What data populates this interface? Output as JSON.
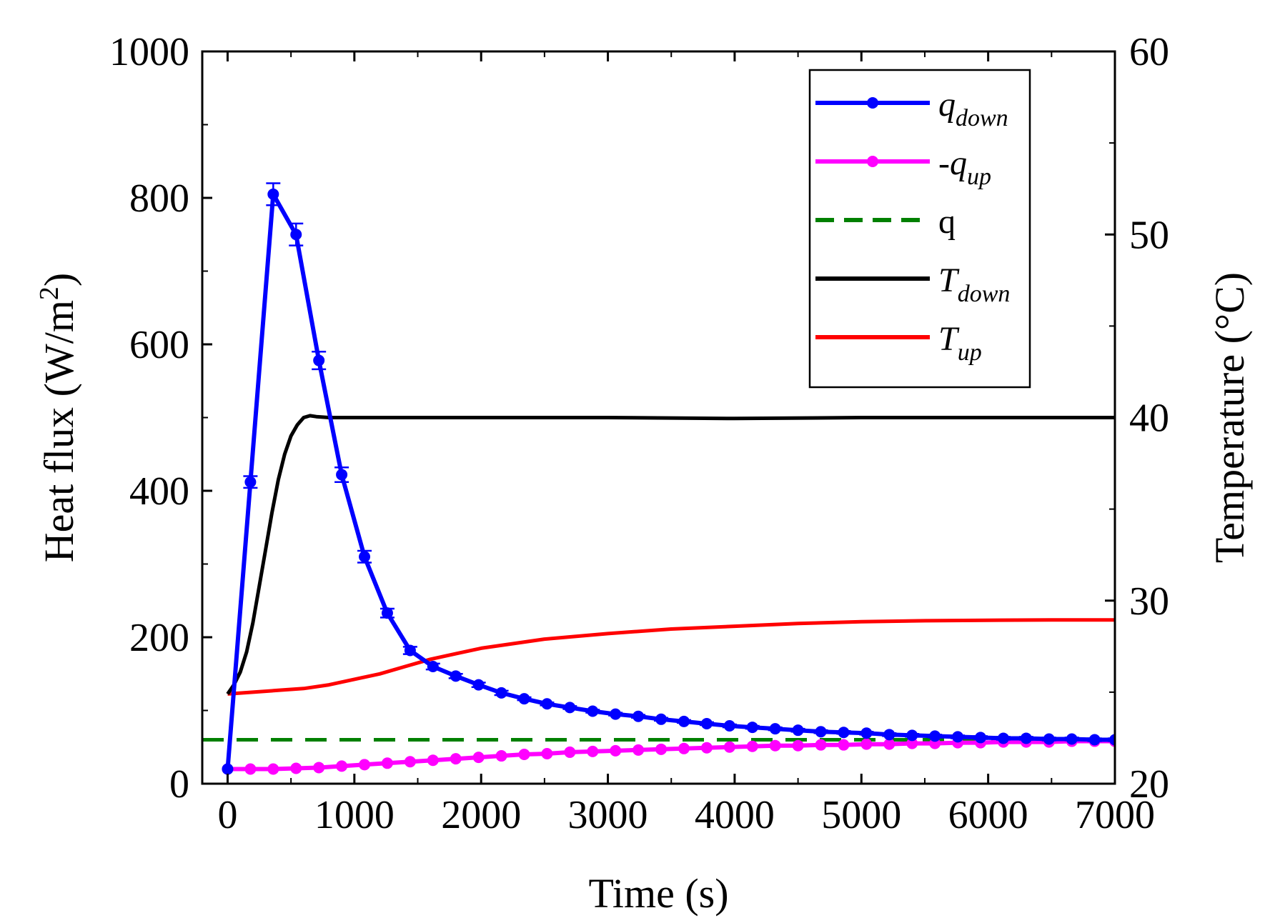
{
  "chart_data": {
    "type": "line",
    "x_axis": {
      "label": "Time (s)",
      "range": [
        -200,
        7000
      ],
      "ticks": [
        0,
        1000,
        2000,
        3000,
        4000,
        5000,
        6000,
        7000
      ],
      "tick_labels": [
        "0",
        "1000",
        "2000",
        "3000",
        "4000",
        "5000",
        "6000",
        "7000"
      ]
    },
    "y_left": {
      "label": "Heat flux (W/m2)",
      "label_main": "Heat flux (W/m",
      "label_sup": "2",
      "label_end": ")",
      "range": [
        0,
        1000
      ],
      "ticks": [
        0,
        200,
        400,
        600,
        800,
        1000
      ],
      "tick_labels": [
        "0",
        "200",
        "400",
        "600",
        "800",
        "1000"
      ]
    },
    "y_right": {
      "label": "Temperature (°C)",
      "range": [
        20,
        60
      ],
      "ticks": [
        20,
        30,
        40,
        50,
        60
      ],
      "tick_labels": [
        "20",
        "30",
        "40",
        "50",
        "60"
      ]
    },
    "legend": {
      "position": "top-right",
      "entries": [
        {
          "series": "q_down",
          "main": "q",
          "sub": "down",
          "italic": true
        },
        {
          "series": "q_up",
          "main": "-q",
          "sub": "up",
          "italic": true
        },
        {
          "series": "q",
          "main": "q",
          "sub": "",
          "italic": false
        },
        {
          "series": "T_down",
          "main": "T",
          "sub": "down",
          "italic": true
        },
        {
          "series": "T_up",
          "main": "T",
          "sub": "up",
          "italic": true
        }
      ]
    },
    "series": [
      {
        "name": "q_down",
        "axis": "left",
        "color": "#0000ff",
        "style": "solid-markers",
        "x": [
          0,
          180,
          360,
          540,
          720,
          900,
          1080,
          1260,
          1440,
          1620,
          1800,
          1980,
          2160,
          2340,
          2520,
          2700,
          2880,
          3060,
          3240,
          3420,
          3600,
          3780,
          3960,
          4140,
          4320,
          4500,
          4680,
          4860,
          5040,
          5220,
          5400,
          5580,
          5760,
          5940,
          6120,
          6300,
          6480,
          6660,
          6840,
          7000
        ],
        "y": [
          20,
          412,
          805,
          750,
          578,
          422,
          310,
          233,
          182,
          160,
          147,
          135,
          124,
          116,
          109,
          104,
          99,
          95,
          92,
          88,
          85,
          82,
          79,
          77,
          75,
          73,
          71,
          70,
          69,
          67,
          66,
          65,
          64,
          63,
          62,
          62,
          61,
          61,
          60,
          60
        ],
        "err": [
          0,
          8,
          15,
          15,
          12,
          10,
          8,
          6,
          5,
          4,
          3,
          3,
          3,
          2,
          2,
          2,
          2,
          2,
          2,
          2,
          2,
          2,
          2,
          2,
          2,
          2,
          2,
          2,
          2,
          2,
          2,
          2,
          2,
          2,
          2,
          2,
          2,
          2,
          2,
          2
        ]
      },
      {
        "name": "q_up",
        "axis": "left",
        "color": "#ff00ff",
        "style": "solid-markers",
        "x": [
          0,
          180,
          360,
          540,
          720,
          900,
          1080,
          1260,
          1440,
          1620,
          1800,
          1980,
          2160,
          2340,
          2520,
          2700,
          2880,
          3060,
          3240,
          3420,
          3600,
          3780,
          3960,
          4140,
          4320,
          4500,
          4680,
          4860,
          5040,
          5220,
          5400,
          5580,
          5760,
          5940,
          6120,
          6300,
          6480,
          6660,
          6840,
          7000
        ],
        "y": [
          20,
          20,
          20,
          21,
          22,
          24,
          26,
          28,
          30,
          32,
          34,
          36,
          38,
          40,
          41,
          43,
          44,
          45,
          46,
          47,
          48,
          49,
          50,
          51,
          52,
          52,
          53,
          53,
          54,
          54,
          55,
          55,
          56,
          56,
          57,
          57,
          57,
          58,
          58,
          58
        ]
      },
      {
        "name": "q",
        "axis": "left",
        "color": "#008000",
        "style": "dashed",
        "x": [
          -200,
          7000
        ],
        "y": [
          60,
          60
        ]
      },
      {
        "name": "T_down",
        "axis": "right",
        "color": "#000000",
        "style": "solid",
        "x": [
          0,
          50,
          100,
          150,
          200,
          250,
          300,
          350,
          400,
          450,
          500,
          550,
          600,
          650,
          700,
          800,
          1000,
          2000,
          3000,
          4000,
          5000,
          6000,
          7000
        ],
        "y": [
          24.9,
          25.4,
          26.1,
          27.2,
          28.8,
          30.8,
          32.8,
          34.8,
          36.6,
          38.0,
          39.0,
          39.6,
          40.0,
          40.1,
          40.05,
          40.0,
          40.0,
          40.0,
          40.0,
          39.95,
          40.0,
          40.0,
          40.0
        ]
      },
      {
        "name": "T_up",
        "axis": "right",
        "color": "#ff0000",
        "style": "solid",
        "x": [
          0,
          200,
          400,
          600,
          800,
          1000,
          1200,
          1400,
          1600,
          1800,
          2000,
          2500,
          3000,
          3500,
          4000,
          4500,
          5000,
          5500,
          6000,
          6500,
          7000
        ],
        "y": [
          24.9,
          25.0,
          25.1,
          25.2,
          25.4,
          25.7,
          26.0,
          26.4,
          26.8,
          27.1,
          27.4,
          27.9,
          28.2,
          28.45,
          28.6,
          28.75,
          28.85,
          28.9,
          28.93,
          28.95,
          28.95
        ]
      }
    ]
  }
}
